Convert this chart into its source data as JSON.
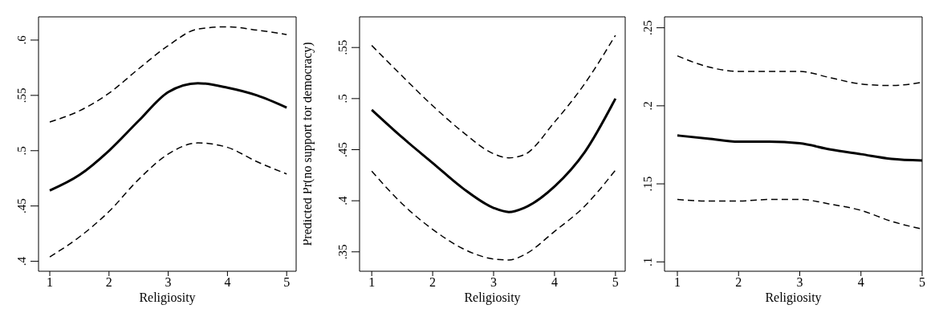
{
  "chart_data": [
    {
      "type": "line",
      "xlabel": "Religiosity",
      "x": [
        1,
        1.5,
        2,
        2.5,
        3,
        3.5,
        4,
        4.5,
        5
      ],
      "xlim": [
        0.81,
        5.16
      ],
      "xticks": [
        1,
        2,
        3,
        4,
        5
      ],
      "ylim": [
        0.391,
        0.621
      ],
      "yticks": [
        {
          "value": 0.4,
          "label": ".4"
        },
        {
          "value": 0.45,
          "label": ".45"
        },
        {
          "value": 0.5,
          "label": ".5"
        },
        {
          "value": 0.55,
          "label": ".55"
        },
        {
          "value": 0.6,
          "label": ".6"
        }
      ],
      "series": [
        {
          "color": "#000000",
          "line_style": "dashed",
          "values": [
            0.526,
            0.536,
            0.552,
            0.574,
            0.595,
            0.61,
            0.612,
            0.609,
            0.605
          ]
        },
        {
          "color": "#000000",
          "line_style": "solid",
          "values": [
            0.464,
            0.478,
            0.5,
            0.527,
            0.553,
            0.561,
            0.557,
            0.55,
            0.539
          ]
        },
        {
          "color": "#000000",
          "line_style": "dashed",
          "values": [
            0.404,
            0.422,
            0.445,
            0.474,
            0.497,
            0.507,
            0.503,
            0.49,
            0.479
          ]
        }
      ]
    },
    {
      "type": "line",
      "xlabel": "Religiosity",
      "ylabel": "Predicted Pr(no support for democracy)",
      "x": [
        1,
        1.5,
        2,
        2.5,
        3,
        3.25,
        3.5,
        4,
        4.5,
        5
      ],
      "xlim": [
        0.8,
        5.16
      ],
      "xticks": [
        1,
        2,
        3,
        4,
        5
      ],
      "ylim": [
        0.331,
        0.58
      ],
      "yticks": [
        {
          "value": 0.35,
          "label": ".35"
        },
        {
          "value": 0.4,
          "label": ".4"
        },
        {
          "value": 0.45,
          "label": ".45"
        },
        {
          "value": 0.5,
          "label": ".5"
        },
        {
          "value": 0.55,
          "label": ".55"
        }
      ],
      "series": [
        {
          "color": "#000000",
          "line_style": "dashed",
          "values": [
            0.552,
            0.522,
            0.493,
            0.467,
            0.446,
            0.442,
            0.445,
            0.477,
            0.515,
            0.562
          ]
        },
        {
          "color": "#000000",
          "line_style": "solid",
          "values": [
            0.489,
            0.462,
            0.437,
            0.412,
            0.393,
            0.389,
            0.393,
            0.414,
            0.448,
            0.5
          ]
        },
        {
          "color": "#000000",
          "line_style": "dashed",
          "values": [
            0.429,
            0.397,
            0.372,
            0.353,
            0.343,
            0.342,
            0.347,
            0.37,
            0.395,
            0.43
          ]
        }
      ]
    },
    {
      "type": "line",
      "xlabel": "Religiosity",
      "x": [
        1,
        1.5,
        2,
        2.5,
        3,
        3.5,
        4,
        4.5,
        5
      ],
      "xlim": [
        0.79,
        5.0
      ],
      "xticks": [
        1,
        2,
        3,
        4,
        5
      ],
      "ylim": [
        0.094,
        0.257
      ],
      "yticks": [
        {
          "value": 0.1,
          "label": ".1"
        },
        {
          "value": 0.15,
          "label": ".15"
        },
        {
          "value": 0.2,
          "label": ".2"
        },
        {
          "value": 0.25,
          "label": ".25"
        }
      ],
      "series": [
        {
          "color": "#000000",
          "line_style": "dashed",
          "values": [
            0.232,
            0.225,
            0.222,
            0.222,
            0.222,
            0.218,
            0.214,
            0.213,
            0.215
          ]
        },
        {
          "color": "#000000",
          "line_style": "solid",
          "values": [
            0.181,
            0.179,
            0.177,
            0.177,
            0.176,
            0.172,
            0.169,
            0.166,
            0.165
          ]
        },
        {
          "color": "#000000",
          "line_style": "dashed",
          "values": [
            0.14,
            0.139,
            0.139,
            0.14,
            0.14,
            0.137,
            0.133,
            0.126,
            0.121
          ]
        }
      ]
    }
  ]
}
